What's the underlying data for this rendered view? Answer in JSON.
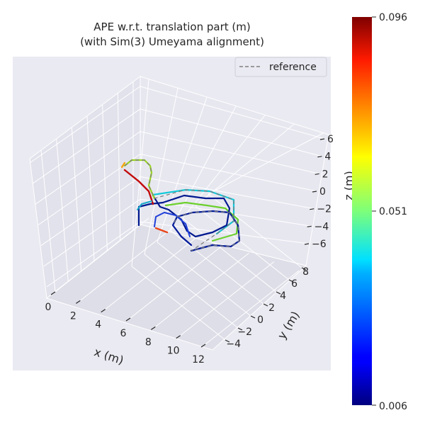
{
  "chart_data": {
    "type": "line",
    "title": "APE w.r.t. translation part (m)",
    "subtitle": "(with Sim(3) Umeyama alignment)",
    "xlabel": "x (m)",
    "ylabel": "y (m)",
    "zlabel": "z (m)",
    "legend": {
      "entries": [
        "reference"
      ],
      "placement": "top-right",
      "style": "dashed"
    },
    "xticks": [
      "0",
      "2",
      "4",
      "6",
      "8",
      "10",
      "12"
    ],
    "yticks": [
      "−4",
      "−2",
      "0",
      "2",
      "4",
      "6",
      "8"
    ],
    "zticks": [
      "−6",
      "−4",
      "−2",
      "0",
      "2",
      "4",
      "6"
    ],
    "colorbar": {
      "colormap": "jet",
      "ticks": [
        "0.006",
        "0.051",
        "0.096"
      ],
      "min": 0.006,
      "max": 0.096
    },
    "grid": true,
    "background": "#eaeaf2",
    "colors": {
      "reference": "#808080",
      "text": "#262626",
      "pane": "#e4e4ee"
    }
  }
}
